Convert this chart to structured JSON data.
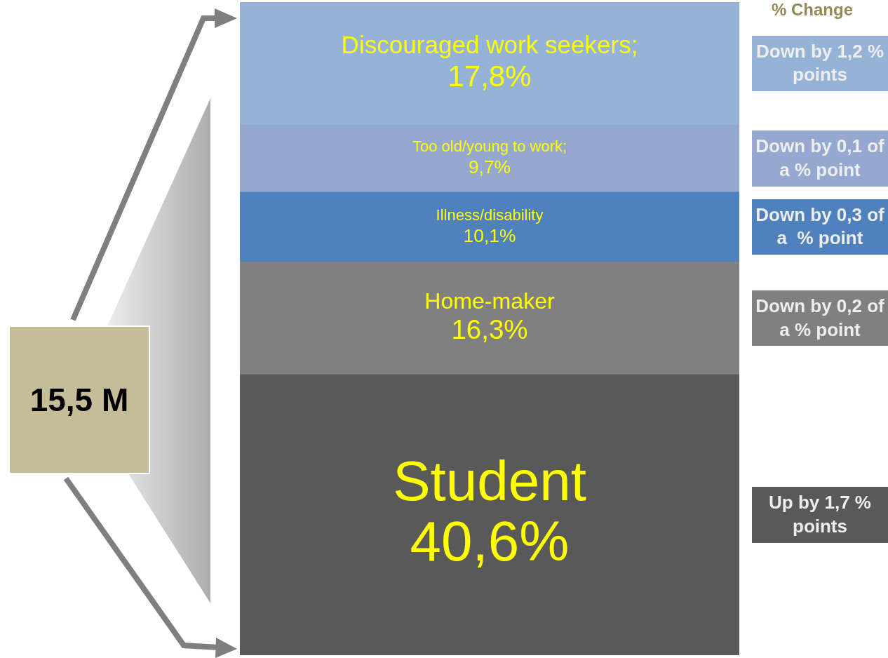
{
  "chart_data": {
    "type": "bar",
    "stacked": true,
    "title": "15,5 M",
    "categories": [
      null
    ],
    "series": [
      {
        "name": "Student",
        "color": "#595959",
        "values": [
          40.6
        ],
        "value_labels": [
          "40,6%"
        ]
      },
      {
        "name": "Home-maker",
        "color": "#808080",
        "values": [
          16.3
        ],
        "value_labels": [
          "16,3%"
        ]
      },
      {
        "name": "Illness/disability",
        "color": "#4f81bd",
        "values": [
          10.1
        ],
        "value_labels": [
          "10,1%"
        ]
      },
      {
        "name": "Too old/young to work;",
        "color": "#95a8cf",
        "values": [
          9.7
        ],
        "value_labels": [
          "9,7%"
        ]
      },
      {
        "name": "Discouraged work seekers;",
        "color": "#95b3d7",
        "values": [
          17.8
        ],
        "value_labels": [
          "17,8%"
        ]
      }
    ],
    "legend_title": "% Change",
    "annotations": [
      "Up by 1,7 % points",
      "Down by 0,2 of a % point",
      "Down by 0,3 of a  % point",
      "Down by 0,1 of a % point",
      "Down by 1,2 % points"
    ]
  }
}
